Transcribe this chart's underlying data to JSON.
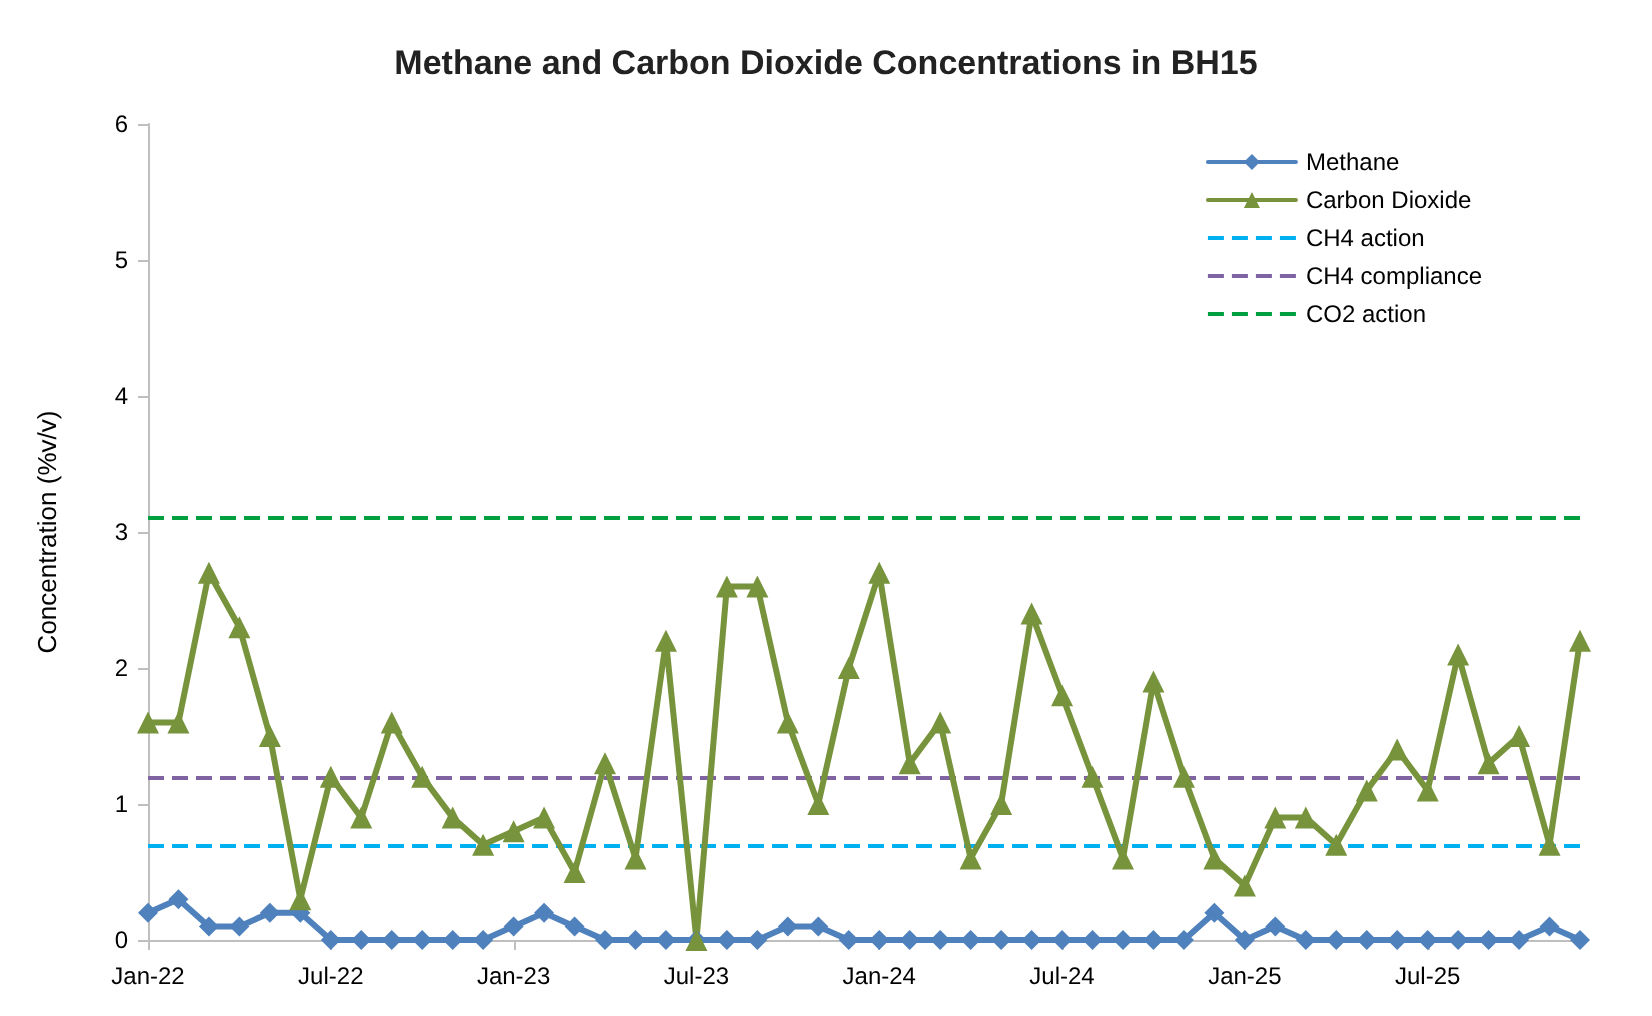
{
  "chart_data": {
    "type": "line",
    "title": "Methane and Carbon Dioxide Concentrations in BH15",
    "ylabel": "Concentration (%v/v)",
    "categories": [
      "Jan-22",
      null,
      null,
      null,
      null,
      null,
      "Jul-22",
      null,
      null,
      null,
      null,
      null,
      "Jan-23",
      null,
      null,
      null,
      null,
      null,
      "Jul-23",
      null,
      null,
      null,
      null,
      null,
      "Jan-24",
      null,
      null,
      null,
      null,
      null,
      "Jul-24",
      null,
      null,
      null,
      null,
      null,
      "Jan-25",
      null,
      null,
      null,
      null,
      null,
      "Jul-25",
      null,
      null,
      null,
      null,
      null
    ],
    "series": [
      {
        "name": "Methane",
        "color": "#4f81bd",
        "marker": "diamond",
        "values": [
          0.2,
          0.3,
          0.1,
          0.1,
          0.2,
          0.2,
          0,
          0,
          0,
          0,
          0,
          0,
          0.1,
          0.2,
          0.1,
          0,
          0,
          0,
          0,
          0,
          0,
          0.1,
          0.1,
          0,
          0,
          0,
          0,
          0,
          0,
          0,
          0,
          0,
          0,
          0,
          0,
          0.2,
          0,
          0.1,
          0,
          0,
          0,
          0,
          0,
          0,
          0,
          0,
          0.1,
          0
        ]
      },
      {
        "name": "Carbon Dioxide",
        "color": "#77933c",
        "marker": "triangle",
        "values": [
          1.6,
          1.6,
          2.7,
          2.3,
          1.5,
          0.3,
          1.2,
          0.9,
          1.6,
          1.2,
          0.9,
          0.7,
          0.8,
          0.9,
          0.5,
          1.3,
          0.6,
          2.2,
          0,
          2.6,
          2.6,
          1.6,
          1.0,
          2.0,
          2.7,
          1.3,
          1.6,
          0.6,
          1.0,
          2.4,
          1.8,
          1.2,
          0.6,
          1.9,
          1.2,
          0.6,
          0.4,
          0.9,
          0.9,
          0.7,
          1.1,
          1.4,
          1.1,
          2.1,
          1.3,
          1.5,
          0.7,
          2.2
        ]
      }
    ],
    "ref_lines": [
      {
        "axis": "y",
        "value": 0.7,
        "label": "CH4 action",
        "color": "#00b0f0",
        "line_style": "dashed"
      },
      {
        "axis": "y",
        "value": 1.2,
        "label": "CH4 compliance",
        "color": "#8064a2",
        "line_style": "dashed"
      },
      {
        "axis": "y",
        "value": 3.1,
        "label": "CO2 action",
        "color": "#00a040",
        "line_style": "dashed"
      }
    ],
    "ylim": [
      0,
      6
    ],
    "yticks": [
      0,
      1,
      2,
      3,
      4,
      5,
      6
    ],
    "grid": false,
    "legend": "top right"
  }
}
